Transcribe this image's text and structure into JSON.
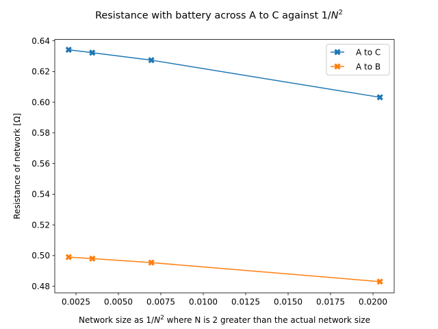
{
  "chart_data": {
    "type": "line",
    "title_main": "Resistance with battery across A to C against 1/",
    "title_var": "N",
    "title_sup": "2",
    "xlabel_main": "Network size as 1/",
    "xlabel_var": "N",
    "xlabel_sup": "2",
    "xlabel_rest": " where N is 2 greater than the actual network size",
    "ylabel": "Resistance of network [Ω]",
    "xlim": [
      0.00125,
      0.02125
    ],
    "ylim": [
      0.4757,
      0.6409
    ],
    "xticks": [
      {
        "value": 0.0025,
        "label": "0.0025"
      },
      {
        "value": 0.005,
        "label": "0.0050"
      },
      {
        "value": 0.0075,
        "label": "0.0075"
      },
      {
        "value": 0.01,
        "label": "0.0100"
      },
      {
        "value": 0.0125,
        "label": "0.0125"
      },
      {
        "value": 0.015,
        "label": "0.0150"
      },
      {
        "value": 0.0175,
        "label": "0.0175"
      },
      {
        "value": 0.02,
        "label": "0.0200"
      }
    ],
    "yticks": [
      {
        "value": 0.48,
        "label": "0.48"
      },
      {
        "value": 0.5,
        "label": "0.50"
      },
      {
        "value": 0.52,
        "label": "0.52"
      },
      {
        "value": 0.54,
        "label": "0.54"
      },
      {
        "value": 0.56,
        "label": "0.56"
      },
      {
        "value": 0.58,
        "label": "0.58"
      },
      {
        "value": 0.6,
        "label": "0.60"
      },
      {
        "value": 0.62,
        "label": "0.62"
      },
      {
        "value": 0.64,
        "label": "0.64"
      }
    ],
    "grid": false,
    "legend_position": "top-right",
    "series": [
      {
        "name": "A to C",
        "color": "#1f77b4",
        "marker": "x-filled",
        "x": [
          0.00207,
          0.00346,
          0.00694,
          0.02041
        ],
        "y": [
          0.6342,
          0.6323,
          0.6274,
          0.6032
        ]
      },
      {
        "name": "A to B",
        "color": "#ff7f0e",
        "marker": "x-filled",
        "x": [
          0.00207,
          0.00346,
          0.00694,
          0.02041
        ],
        "y": [
          0.499,
          0.498,
          0.4954,
          0.483
        ]
      }
    ]
  }
}
